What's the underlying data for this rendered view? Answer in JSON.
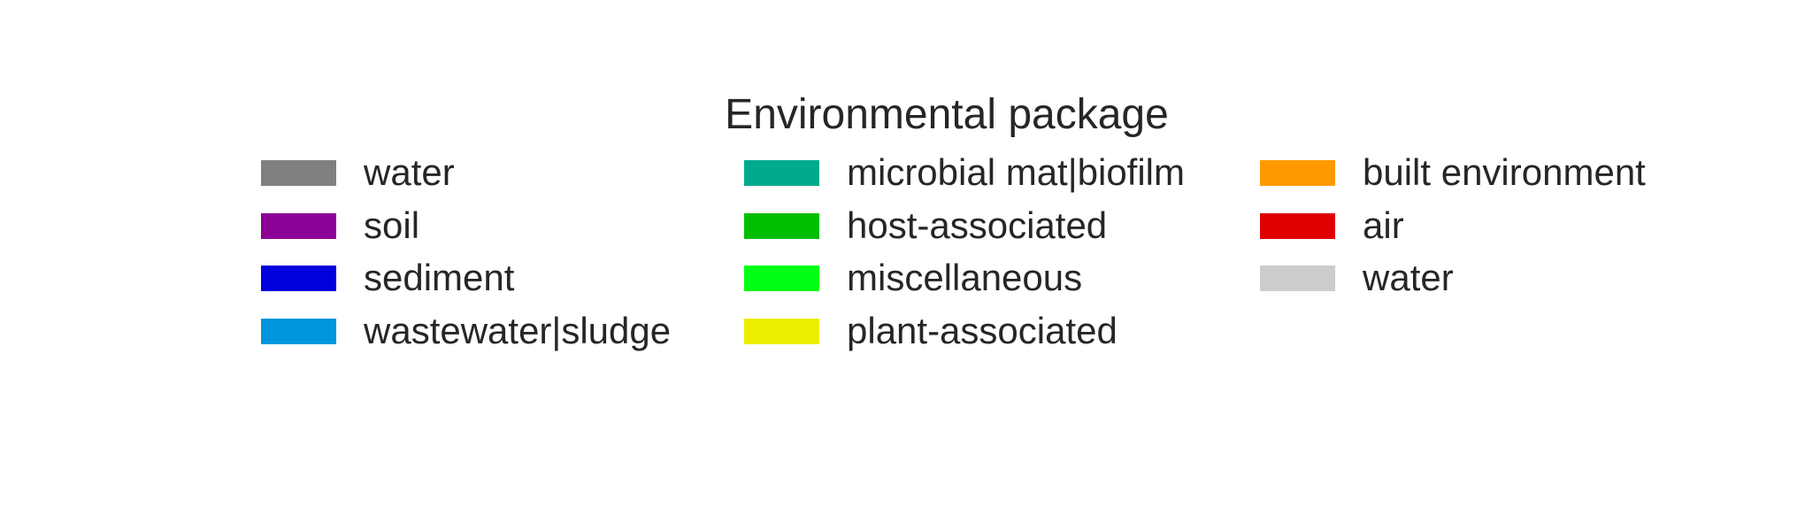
{
  "chart_data": {
    "type": "legend",
    "title": "Environmental package",
    "columns": [
      [
        {
          "label": "water",
          "color": "#808080"
        },
        {
          "label": "soil",
          "color": "#8b0096"
        },
        {
          "label": "sediment",
          "color": "#0000dc"
        },
        {
          "label": "wastewater|sludge",
          "color": "#0096dc"
        }
      ],
      [
        {
          "label": "microbial mat|biofilm",
          "color": "#00aa8c"
        },
        {
          "label": "host-associated",
          "color": "#00be00"
        },
        {
          "label": "miscellaneous",
          "color": "#00ff14"
        },
        {
          "label": "plant-associated",
          "color": "#eded00"
        }
      ],
      [
        {
          "label": "built environment",
          "color": "#ff9900"
        },
        {
          "label": "air",
          "color": "#e10000"
        },
        {
          "label": "water",
          "color": "#cccccc"
        }
      ]
    ]
  }
}
